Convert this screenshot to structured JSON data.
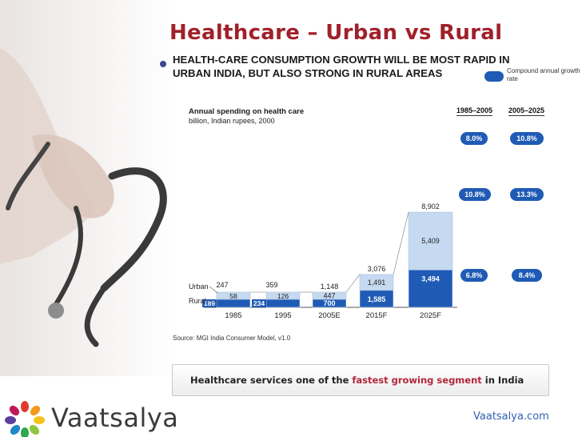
{
  "slide": {
    "title": "Healthcare – Urban vs Rural",
    "headline": "HEALTH-CARE CONSUMPTION GROWTH WILL BE MOST RAPID IN URBAN INDIA, BUT ALSO STRONG IN RURAL AREAS",
    "legend_label": "Compound annual growth rate",
    "source": "Source: MGI India Consumer Model, v1.0",
    "banner": {
      "prefix": "Healthcare services one of the ",
      "highlight": "fastest growing segment",
      "suffix": " in India"
    },
    "brand": "Vaatsalya",
    "website": "Vaatsalya.com",
    "colors": {
      "title": "#a0202a",
      "urban": "#c5daf0",
      "rural": "#1f5bb5",
      "highlight": "#b2263a",
      "site": "#2f5fb0"
    }
  },
  "chart_data": {
    "type": "bar",
    "stacked": true,
    "title": "Annual spending on health care",
    "subtitle": "billion, Indian rupees, 2000",
    "categories": [
      "1985",
      "1995",
      "2005E",
      "2015F",
      "2025F"
    ],
    "series": [
      {
        "name": "Rural",
        "values": [
          189,
          234,
          700,
          1585,
          3494
        ]
      },
      {
        "name": "Urban",
        "values": [
          58,
          126,
          447,
          1491,
          5409
        ]
      }
    ],
    "totals": [
      247,
      359,
      1148,
      3076,
      8902
    ],
    "value_labels": {
      "rural": [
        "189",
        "234",
        "700",
        "1,585",
        "3,494"
      ],
      "urban": [
        "58",
        "126",
        "447",
        "1,491",
        "5,409"
      ],
      "totals": [
        "247",
        "359",
        "1,148",
        "3,076",
        "8,902"
      ]
    },
    "growth_rates": {
      "periods": [
        "1985–2005",
        "2005–2025"
      ],
      "rows": [
        {
          "values": [
            "8.0%",
            "10.8%"
          ]
        },
        {
          "values": [
            "10.8%",
            "13.3%"
          ]
        },
        {
          "values": [
            "6.8%",
            "8.4%"
          ]
        }
      ]
    },
    "series_labels": [
      "Urban",
      "Rural"
    ],
    "ylim": [
      0,
      9000
    ]
  }
}
